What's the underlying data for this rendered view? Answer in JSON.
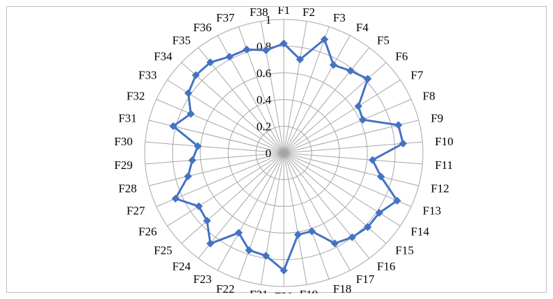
{
  "chart_data": {
    "type": "radar",
    "title": "",
    "categories": [
      "F1",
      "F2",
      "F3",
      "F4",
      "F5",
      "F6",
      "F7",
      "F8",
      "F9",
      "F10",
      "F11",
      "F12",
      "F13",
      "F14",
      "F15",
      "F16",
      "F17",
      "F18",
      "F19",
      "F20",
      "F21",
      "F22",
      "F23",
      "F24",
      "F25",
      "F26",
      "F27",
      "F28",
      "F29",
      "F30",
      "F31",
      "F32",
      "F33",
      "F34",
      "F35",
      "F36",
      "F37",
      "F38"
    ],
    "series": [
      {
        "name": "",
        "values": [
          0.82,
          0.71,
          0.9,
          0.75,
          0.78,
          0.82,
          0.64,
          0.62,
          0.85,
          0.86,
          0.64,
          0.72,
          0.89,
          0.82,
          0.82,
          0.8,
          0.77,
          0.62,
          0.62,
          0.88,
          0.78,
          0.77,
          0.68,
          0.86,
          0.75,
          0.73,
          0.85,
          0.71,
          0.66,
          0.62,
          0.82,
          0.73,
          0.82,
          0.86,
          0.86,
          0.82,
          0.82,
          0.78
        ]
      }
    ],
    "ticks": [
      "0",
      "0.2",
      "0.4",
      "0.6",
      "0.8",
      "1"
    ],
    "rlim": [
      0,
      1
    ],
    "grid": true,
    "legend": "none",
    "colors": {
      "series": "#4472c4",
      "grid": "#a6a6a6",
      "spoke": "#a6a6a6"
    }
  }
}
